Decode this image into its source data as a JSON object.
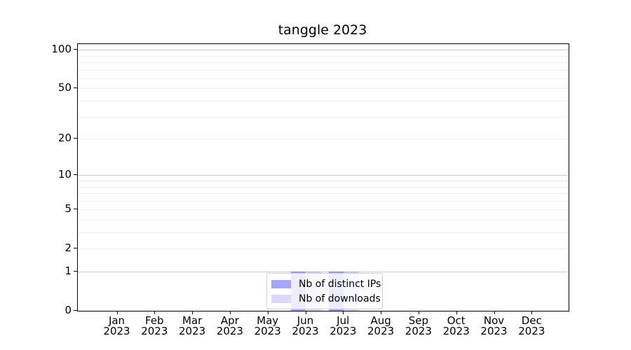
{
  "chart_data": {
    "type": "bar",
    "title": "tanggle 2023",
    "categories": [
      "Jan 2023",
      "Feb 2023",
      "Mar 2023",
      "Apr 2023",
      "May 2023",
      "Jun 2023",
      "Jul 2023",
      "Aug 2023",
      "Sep 2023",
      "Oct 2023",
      "Nov 2023",
      "Dec 2023"
    ],
    "series": [
      {
        "name": "Nb of distinct IPs",
        "color": "rgba(0,0,255,0.35)",
        "values": [
          0,
          0,
          0,
          0,
          0,
          1,
          1,
          0,
          0,
          0,
          0,
          0
        ]
      },
      {
        "name": "Nb of downloads",
        "color": "rgba(0,0,255,0.15)",
        "values": [
          0,
          0,
          0,
          0,
          0,
          1,
          1,
          0,
          0,
          0,
          0,
          0
        ]
      }
    ],
    "xlabel": "",
    "ylabel": "",
    "yscale": "symlog (position ~ log10(1+y))",
    "ylim": [
      0,
      110
    ],
    "ytick_values": [
      0,
      1,
      2,
      5,
      10,
      20,
      50,
      100
    ],
    "ytick_labels": [
      "0",
      "1",
      "2",
      "5",
      "10",
      "20",
      "50",
      "100"
    ],
    "major_grid_values": [
      1,
      10,
      100
    ],
    "minor_grid_values": [
      2,
      3,
      4,
      5,
      6,
      7,
      8,
      9,
      20,
      30,
      40,
      50,
      60,
      70,
      80,
      90
    ],
    "grid": "on",
    "legend_position": "lower center (inside axes)",
    "colors": {
      "background": "#ffffff",
      "spine": "#000000",
      "grid_major": "#c9c9c9",
      "grid_minor": "#eeeeee",
      "legend_border": "#cccccc",
      "legend_background": "rgba(255,255,255,0.8)",
      "text": "#000000"
    }
  }
}
